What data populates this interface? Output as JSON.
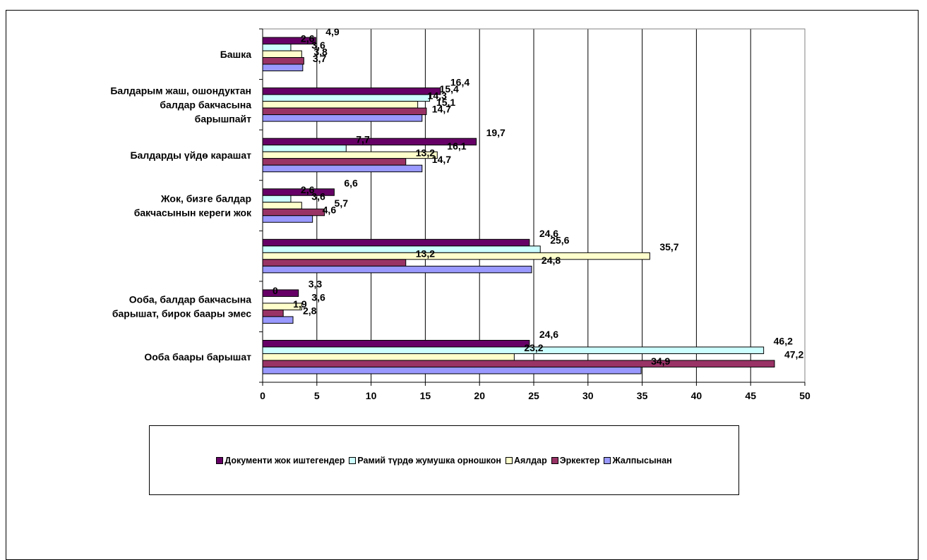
{
  "chart_data": {
    "type": "bar",
    "orientation": "horizontal",
    "categories": [
      "Башка",
      "Балдарым жаш, ошондуктан балдар бакчасына барышпайт",
      "Балдарды үйдө карашат",
      "Жок, бизге балдар бакчасынын кереги жок",
      "",
      "Ооба, балдар бакчасына барышат, бирок баары эмес",
      "Ооба баары барышат"
    ],
    "category_lines": [
      [
        "Башка"
      ],
      [
        "Балдарым жаш, ошондуктан",
        "балдар бакчасына",
        "барышпайт"
      ],
      [
        "Балдарды үйдө карашат"
      ],
      [
        "Жок, бизге балдар",
        "бакчасынын кереги жок"
      ],
      [],
      [
        "Ооба, балдар бакчасына",
        "барышат, бирок баары эмес"
      ],
      [
        "Ооба баары барышат"
      ]
    ],
    "series": [
      {
        "name": "Документи жок иштегендер",
        "color": "#660066",
        "values": [
          4.9,
          16.4,
          19.7,
          6.6,
          24.6,
          3.3,
          24.6
        ],
        "labels": [
          "4,9",
          "16,4",
          "19,7",
          "6,6",
          "24,6",
          "3,3",
          "24,6"
        ]
      },
      {
        "name": "Рамий түрдө жумушка орношкон",
        "color": "#CCFFFF",
        "values": [
          2.6,
          15.4,
          7.7,
          2.6,
          25.6,
          0,
          46.2
        ],
        "labels": [
          "2,6",
          "15,4",
          "7,7",
          "2,6",
          "25,6",
          "0",
          "46,2"
        ]
      },
      {
        "name": "Аялдар",
        "color": "#FFFFCC",
        "values": [
          3.6,
          14.3,
          16.1,
          3.6,
          35.7,
          3.6,
          23.2
        ],
        "labels": [
          "3,6",
          "14,3",
          "16,1",
          "3,6",
          "35,7",
          "3,6",
          "23,2"
        ]
      },
      {
        "name": "Эркектер",
        "color": "#993366",
        "values": [
          3.8,
          15.1,
          13.2,
          5.7,
          13.2,
          1.9,
          47.2
        ],
        "labels": [
          "3,8",
          "15,1",
          "13,2",
          "5,7",
          "13,2",
          "1,9",
          "47,2"
        ]
      },
      {
        "name": "Жалпысынан",
        "color": "#9999FF",
        "values": [
          3.7,
          14.7,
          14.7,
          4.6,
          24.8,
          2.8,
          34.9
        ],
        "labels": [
          "3,7",
          "14,7",
          "14,7",
          "4,6",
          "24,8",
          "2,8",
          "34,9"
        ]
      }
    ],
    "xlim": [
      0,
      50
    ],
    "xticks": [
      "0",
      "5",
      "10",
      "15",
      "20",
      "25",
      "30",
      "35",
      "40",
      "45",
      "50"
    ],
    "grid": true,
    "legend_position": "bottom",
    "legend_order": [
      0,
      1,
      2,
      3,
      4
    ]
  }
}
